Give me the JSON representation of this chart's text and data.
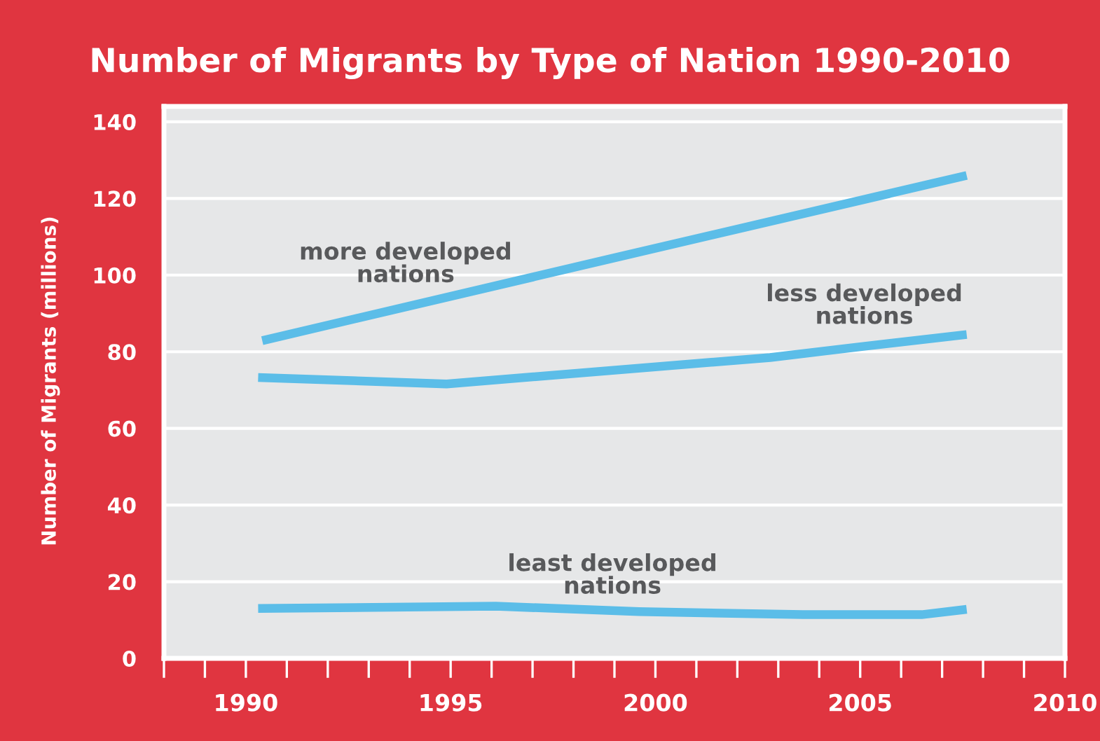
{
  "chart_data": {
    "type": "line",
    "title": "Number of Migrants by Type of Nation 1990-2010",
    "ylabel": "Number of Migrants (millions)",
    "xlim": [
      1988,
      2010
    ],
    "ylim": [
      0,
      144
    ],
    "xticks": [
      {
        "value": 1988,
        "label": null
      },
      {
        "value": 1989,
        "label": null
      },
      1990,
      {
        "value": 1991,
        "label": null
      },
      {
        "value": 1992,
        "label": null
      },
      {
        "value": 1993,
        "label": null
      },
      {
        "value": 1994,
        "label": null
      },
      1995,
      {
        "value": 1996,
        "label": null
      },
      {
        "value": 1997,
        "label": null
      },
      {
        "value": 1998,
        "label": null
      },
      {
        "value": 1999,
        "label": null
      },
      2000,
      {
        "value": 2001,
        "label": null
      },
      {
        "value": 2002,
        "label": null
      },
      {
        "value": 2003,
        "label": null
      },
      {
        "value": 2004,
        "label": null
      },
      2005,
      {
        "value": 2006,
        "label": null
      },
      {
        "value": 2007,
        "label": null
      },
      {
        "value": 2008,
        "label": null
      },
      {
        "value": 2009,
        "label": null
      },
      2010
    ],
    "yticks": [
      0,
      20,
      40,
      60,
      80,
      100,
      120,
      140
    ],
    "grid": "y",
    "legend": false,
    "marker": "none",
    "line_style": "solid",
    "series": [
      {
        "name": "more developed nations",
        "color": "#5bbde8",
        "x": [
          1990.4,
          1999.0,
          2007.6
        ],
        "values": [
          82.9,
          104.5,
          126.0
        ]
      },
      {
        "name": "less developed nations",
        "color": "#5bbde8",
        "x": [
          1990.3,
          1994.9,
          2002.8,
          2005.0,
          2007.6
        ],
        "values": [
          73.3,
          71.6,
          78.5,
          81.3,
          84.5
        ]
      },
      {
        "name": "least developed nations",
        "color": "#5bbde8",
        "x": [
          1990.3,
          1996.1,
          1999.6,
          2003.6,
          2006.5,
          2007.6
        ],
        "values": [
          13.0,
          13.6,
          12.2,
          11.4,
          11.4,
          12.8
        ]
      }
    ]
  }
}
